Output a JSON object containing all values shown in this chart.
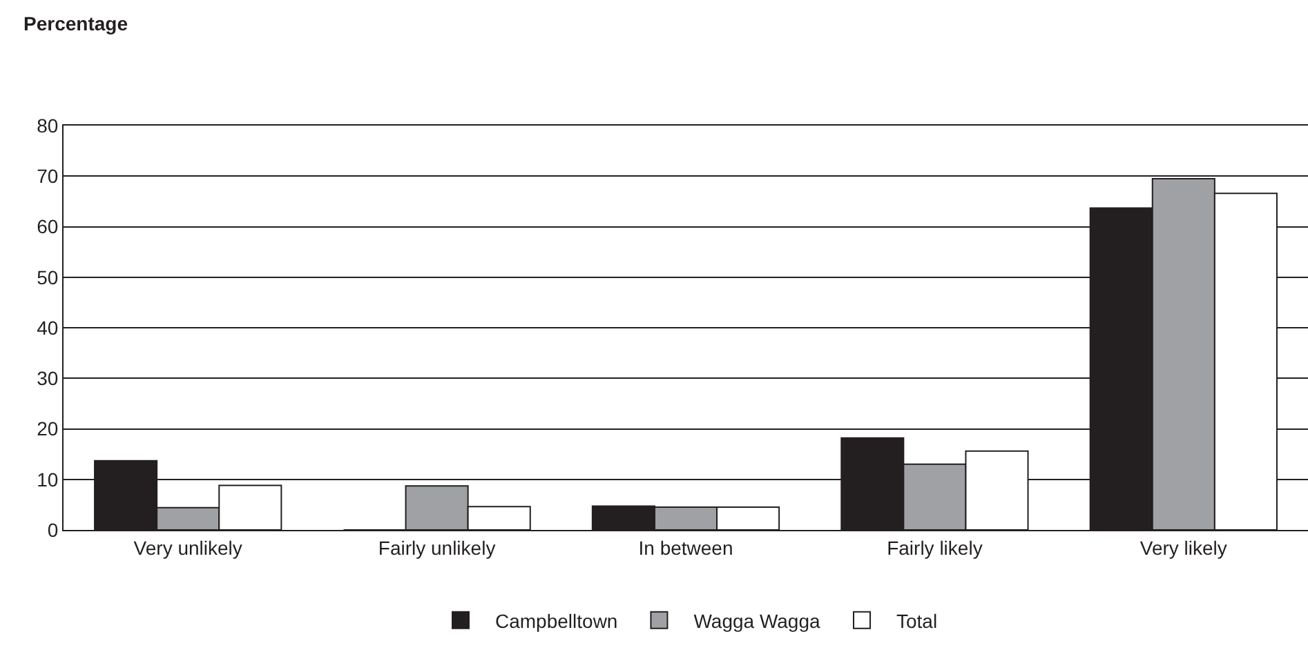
{
  "chart_data": {
    "type": "bar",
    "ylabel": "Percentage",
    "categories": [
      "Very unlikely",
      "Fairly unlikely",
      "In between",
      "Fairly likely",
      "Very likely"
    ],
    "series": [
      {
        "name": "Campbelltown",
        "color": "#231f20",
        "values": [
          13.7,
          0,
          4.7,
          18.2,
          63.7
        ]
      },
      {
        "name": "Wagga Wagga",
        "color": "#a0a1a4",
        "values": [
          4.4,
          8.7,
          4.5,
          13.0,
          69.5
        ]
      },
      {
        "name": "Total",
        "color": "#ffffff",
        "values": [
          8.8,
          4.6,
          4.5,
          15.6,
          66.6
        ]
      }
    ],
    "ylim": [
      0,
      80
    ],
    "yticks": [
      0,
      10,
      20,
      30,
      40,
      50,
      60,
      70,
      80
    ],
    "grid": "y",
    "legend": "bottom"
  }
}
